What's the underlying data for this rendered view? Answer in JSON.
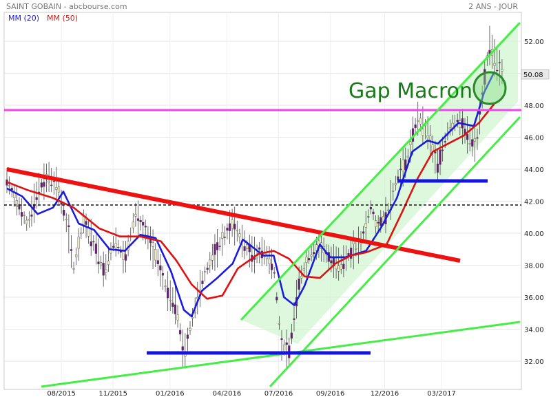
{
  "header": {
    "title": "SAINT GOBAIN - abcbourse.com",
    "period": "2 ANS - JOUR"
  },
  "legend": [
    {
      "label": "MM (20)",
      "color": "#1a1adc"
    },
    {
      "label": "MM (50)",
      "color": "#dd1111"
    }
  ],
  "chart_data": {
    "type": "candlestick",
    "title": "SAINT GOBAIN - abcbourse.com",
    "ylim": [
      31,
      53.2
    ],
    "y_ticks": [
      32,
      34,
      36,
      38,
      40,
      42,
      44,
      46,
      48,
      50,
      52
    ],
    "y_tick_labels": [
      "32.00",
      "34.00",
      "36.00",
      "38.00",
      "40.00",
      "42.00",
      "44.00",
      "46.00",
      "48.00",
      "50.00",
      "52.00"
    ],
    "x_labels": [
      "08/2015",
      "11/2015",
      "01/2016",
      "04/2016",
      "07/2016",
      "09/2016",
      "12/2016",
      "03/2017"
    ],
    "last_price": "50.08",
    "series": [
      {
        "name": "MM (20)",
        "color": "#1a1adc",
        "values": [
          {
            "x": 0,
            "y": 42.8
          },
          {
            "x": 0.03,
            "y": 42.3
          },
          {
            "x": 0.06,
            "y": 41.2
          },
          {
            "x": 0.09,
            "y": 41.6
          },
          {
            "x": 0.11,
            "y": 42.6
          },
          {
            "x": 0.14,
            "y": 40.6
          },
          {
            "x": 0.17,
            "y": 40.2
          },
          {
            "x": 0.2,
            "y": 39.0
          },
          {
            "x": 0.23,
            "y": 38.9
          },
          {
            "x": 0.26,
            "y": 39.9
          },
          {
            "x": 0.29,
            "y": 39.7
          },
          {
            "x": 0.32,
            "y": 37.6
          },
          {
            "x": 0.345,
            "y": 35.2
          },
          {
            "x": 0.36,
            "y": 34.8
          },
          {
            "x": 0.38,
            "y": 36.4
          },
          {
            "x": 0.41,
            "y": 37.2
          },
          {
            "x": 0.44,
            "y": 38.1
          },
          {
            "x": 0.46,
            "y": 39.6
          },
          {
            "x": 0.48,
            "y": 39.1
          },
          {
            "x": 0.5,
            "y": 38.6
          },
          {
            "x": 0.52,
            "y": 38.6
          },
          {
            "x": 0.54,
            "y": 36.0
          },
          {
            "x": 0.56,
            "y": 35.5
          },
          {
            "x": 0.58,
            "y": 36.7
          },
          {
            "x": 0.61,
            "y": 39.3
          },
          {
            "x": 0.63,
            "y": 38.5
          },
          {
            "x": 0.66,
            "y": 38.5
          },
          {
            "x": 0.7,
            "y": 38.9
          },
          {
            "x": 0.73,
            "y": 40.4
          },
          {
            "x": 0.76,
            "y": 42.2
          },
          {
            "x": 0.79,
            "y": 45.1
          },
          {
            "x": 0.82,
            "y": 45.8
          },
          {
            "x": 0.84,
            "y": 45.6
          },
          {
            "x": 0.88,
            "y": 46.9
          },
          {
            "x": 0.91,
            "y": 46.7
          },
          {
            "x": 0.93,
            "y": 48.8
          },
          {
            "x": 0.95,
            "y": 50.1
          }
        ]
      },
      {
        "name": "MM (50)",
        "color": "#dd1111",
        "values": [
          {
            "x": 0,
            "y": 43.2
          },
          {
            "x": 0.04,
            "y": 42.7
          },
          {
            "x": 0.09,
            "y": 42.2
          },
          {
            "x": 0.13,
            "y": 41.6
          },
          {
            "x": 0.18,
            "y": 40.3
          },
          {
            "x": 0.22,
            "y": 39.8
          },
          {
            "x": 0.26,
            "y": 39.8
          },
          {
            "x": 0.3,
            "y": 39.5
          },
          {
            "x": 0.33,
            "y": 38.3
          },
          {
            "x": 0.36,
            "y": 36.8
          },
          {
            "x": 0.39,
            "y": 35.9
          },
          {
            "x": 0.42,
            "y": 36.1
          },
          {
            "x": 0.45,
            "y": 37.8
          },
          {
            "x": 0.49,
            "y": 38.7
          },
          {
            "x": 0.52,
            "y": 38.9
          },
          {
            "x": 0.55,
            "y": 38.4
          },
          {
            "x": 0.58,
            "y": 37.3
          },
          {
            "x": 0.61,
            "y": 37.2
          },
          {
            "x": 0.64,
            "y": 38.1
          },
          {
            "x": 0.67,
            "y": 38.6
          },
          {
            "x": 0.7,
            "y": 38.8
          },
          {
            "x": 0.74,
            "y": 39.3
          },
          {
            "x": 0.77,
            "y": 41.3
          },
          {
            "x": 0.8,
            "y": 43.4
          },
          {
            "x": 0.83,
            "y": 45.1
          },
          {
            "x": 0.86,
            "y": 45.6
          },
          {
            "x": 0.89,
            "y": 46.1
          },
          {
            "x": 0.92,
            "y": 46.9
          },
          {
            "x": 0.95,
            "y": 48.1
          }
        ]
      },
      {
        "name": "price",
        "color": "#6b1a7a",
        "values": [
          {
            "x": 0,
            "y": 43.3
          },
          {
            "x": 0.02,
            "y": 42.0
          },
          {
            "x": 0.04,
            "y": 40.5
          },
          {
            "x": 0.06,
            "y": 42.6
          },
          {
            "x": 0.08,
            "y": 43.6
          },
          {
            "x": 0.1,
            "y": 42.8
          },
          {
            "x": 0.12,
            "y": 40.1
          },
          {
            "x": 0.13,
            "y": 37.8
          },
          {
            "x": 0.15,
            "y": 40.8
          },
          {
            "x": 0.17,
            "y": 39.3
          },
          {
            "x": 0.19,
            "y": 37.6
          },
          {
            "x": 0.21,
            "y": 39.6
          },
          {
            "x": 0.23,
            "y": 38.3
          },
          {
            "x": 0.25,
            "y": 41.2
          },
          {
            "x": 0.27,
            "y": 40.1
          },
          {
            "x": 0.29,
            "y": 38.6
          },
          {
            "x": 0.31,
            "y": 36.6
          },
          {
            "x": 0.33,
            "y": 35.4
          },
          {
            "x": 0.345,
            "y": 32.3
          },
          {
            "x": 0.36,
            "y": 34.5
          },
          {
            "x": 0.38,
            "y": 37.0
          },
          {
            "x": 0.4,
            "y": 38.5
          },
          {
            "x": 0.42,
            "y": 39.6
          },
          {
            "x": 0.44,
            "y": 40.7
          },
          {
            "x": 0.46,
            "y": 39.4
          },
          {
            "x": 0.48,
            "y": 38.6
          },
          {
            "x": 0.5,
            "y": 38.9
          },
          {
            "x": 0.52,
            "y": 37.9
          },
          {
            "x": 0.535,
            "y": 33.0
          },
          {
            "x": 0.55,
            "y": 32.6
          },
          {
            "x": 0.57,
            "y": 37.1
          },
          {
            "x": 0.59,
            "y": 38.6
          },
          {
            "x": 0.61,
            "y": 39.3
          },
          {
            "x": 0.63,
            "y": 38.4
          },
          {
            "x": 0.65,
            "y": 38.0
          },
          {
            "x": 0.67,
            "y": 38.8
          },
          {
            "x": 0.69,
            "y": 39.4
          },
          {
            "x": 0.71,
            "y": 41.7
          },
          {
            "x": 0.72,
            "y": 40.4
          },
          {
            "x": 0.74,
            "y": 41.2
          },
          {
            "x": 0.76,
            "y": 43.4
          },
          {
            "x": 0.78,
            "y": 44.6
          },
          {
            "x": 0.8,
            "y": 47.2
          },
          {
            "x": 0.82,
            "y": 46.3
          },
          {
            "x": 0.84,
            "y": 44.2
          },
          {
            "x": 0.86,
            "y": 46.5
          },
          {
            "x": 0.88,
            "y": 47.1
          },
          {
            "x": 0.9,
            "y": 46.0
          },
          {
            "x": 0.915,
            "y": 45.4
          },
          {
            "x": 0.93,
            "y": 49.5
          },
          {
            "x": 0.94,
            "y": 51.8
          },
          {
            "x": 0.955,
            "y": 50.6
          },
          {
            "x": 0.965,
            "y": 50.1
          }
        ]
      }
    ],
    "annotations": [
      {
        "text": "Gap Macron",
        "color": "#1a7a1a"
      }
    ]
  }
}
